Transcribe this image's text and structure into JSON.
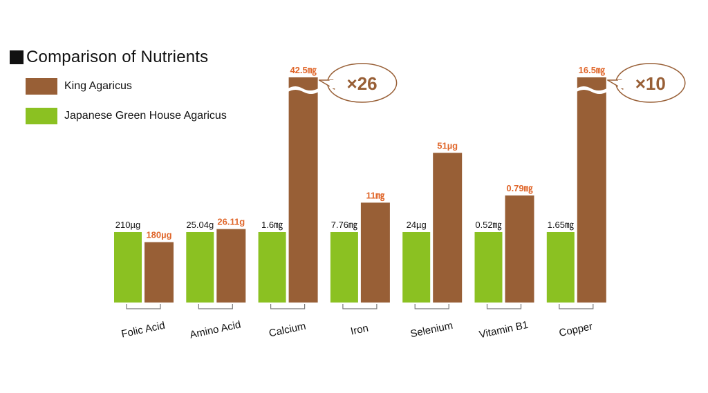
{
  "colors": {
    "king": "#985f36",
    "green": "#8bc122",
    "value_dark": "#111111",
    "value_orange": "#e0662a",
    "callout_text": "#985f36"
  },
  "title": "Comparison of Nutrients",
  "legend": [
    {
      "label": "King Agaricus",
      "color": "#985f36"
    },
    {
      "label": "Japanese Green House Agaricus",
      "color": "#8bc122"
    }
  ],
  "chart_data": {
    "type": "bar",
    "title": "Comparison of Nutrients",
    "categories": [
      "Folic Acid",
      "Amino Acid",
      "Calcium",
      "Iron",
      "Selenium",
      "Vitamin B1",
      "Copper"
    ],
    "series": [
      {
        "name": "Japanese Green House Agaricus",
        "values": [
          210,
          25.04,
          1.6,
          7.76,
          24,
          0.52,
          1.65
        ],
        "labels": [
          "210µg",
          "25.04g",
          "1.6㎎",
          "7.76㎎",
          "24µg",
          "0.52㎎",
          "1.65㎎"
        ]
      },
      {
        "name": "King Agaricus",
        "values": [
          180,
          26.11,
          42.5,
          11,
          51,
          0.79,
          16.5
        ],
        "labels": [
          "180µg",
          "26.11g",
          "42.5㎎",
          "11㎎",
          "51µg",
          "0.79㎎",
          "16.5㎎"
        ]
      }
    ],
    "callouts": [
      {
        "category": "Calcium",
        "text": "×26"
      },
      {
        "category": "Copper",
        "text": "×10"
      }
    ],
    "axis_break_categories": [
      "Calcium",
      "Copper"
    ],
    "grid": false,
    "legend_position": "top-left"
  }
}
